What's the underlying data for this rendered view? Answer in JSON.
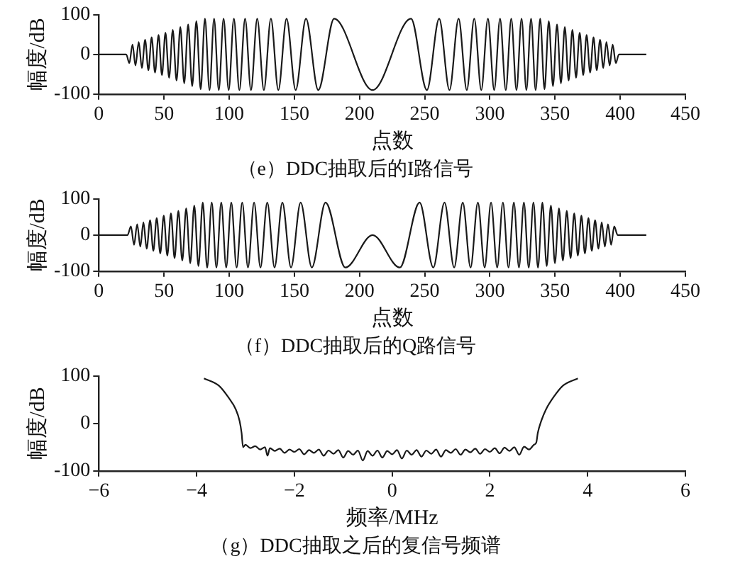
{
  "chart_data": [
    {
      "type": "line",
      "title": "（e）DDC抽取后的I路信号",
      "xlabel": "点数",
      "ylabel": "幅度/dB",
      "xlim": [
        0,
        450
      ],
      "xticks": [
        0,
        50,
        100,
        150,
        200,
        250,
        300,
        350,
        400,
        450
      ],
      "ylim": [
        -100,
        100
      ],
      "yticks": [
        -100,
        0,
        100
      ],
      "series": [
        {
          "color": "#1a1a1a",
          "x": [
            0,
            21,
            23.4,
            25.8,
            28.1,
            30.6,
            33.0,
            35.5,
            38.0,
            40.5,
            43.1,
            45.8,
            48.4,
            51.1,
            53.9,
            56.7,
            59.6,
            62.5,
            65.5,
            68.5,
            71.6,
            74.8,
            78.1,
            81.4,
            84.9,
            88.4,
            92.0,
            95.7,
            99.6,
            103.6,
            107.8,
            112.2,
            116.7,
            121.5,
            126.6,
            132.0,
            137.7,
            144.0,
            151.0,
            158.9,
            168.3,
            180.5,
            210,
            239.5,
            251.7,
            261.1,
            269.0,
            276.0,
            282.3,
            288.0,
            293.4,
            298.5,
            303.3,
            307.8,
            312.2,
            316.4,
            320.4,
            324.3,
            328.0,
            331.6,
            335.1,
            338.6,
            341.9,
            345.2,
            348.4,
            351.5,
            354.5,
            357.5,
            360.4,
            363.3,
            366.1,
            368.9,
            371.6,
            374.2,
            376.9,
            379.5,
            382.0,
            384.5,
            387.0,
            389.4,
            391.9,
            394.2,
            396.6,
            399,
            420
          ],
          "values": [
            0,
            0,
            -22,
            25,
            -28,
            31,
            -34,
            37,
            -40,
            43,
            -46,
            49,
            -52,
            55,
            -59,
            62,
            -66,
            69,
            -73,
            76,
            -80,
            84,
            -88,
            90,
            -90,
            90,
            -90,
            90,
            -90,
            90,
            -90,
            90,
            -90,
            90,
            -90,
            90,
            -90,
            90,
            -90,
            90,
            -90,
            90,
            -90,
            90,
            -90,
            90,
            -90,
            90,
            -90,
            90,
            -90,
            90,
            -90,
            90,
            -90,
            90,
            -90,
            90,
            -90,
            90,
            -90,
            90,
            -88,
            84,
            -80,
            76,
            -73,
            69,
            -66,
            62,
            -59,
            55,
            -52,
            49,
            -46,
            43,
            -40,
            37,
            -34,
            31,
            -28,
            25,
            -22,
            0,
            0
          ]
        }
      ]
    },
    {
      "type": "line",
      "title": "（f）DDC抽取后的Q路信号",
      "xlabel": "点数",
      "ylabel": "幅度/dB",
      "xlim": [
        0,
        450
      ],
      "xticks": [
        0,
        50,
        100,
        150,
        200,
        250,
        300,
        350,
        400,
        450
      ],
      "ylim": [
        -100,
        100
      ],
      "yticks": [
        -100,
        0,
        100
      ],
      "series": [
        {
          "color": "#1a1a1a",
          "x": [
            0,
            22,
            24.6,
            27.0,
            29.4,
            31.8,
            34.2,
            36.7,
            39.3,
            41.8,
            44.4,
            47.1,
            49.8,
            52.5,
            55.3,
            58.1,
            61.0,
            64.0,
            67.0,
            70.1,
            73.2,
            76.4,
            79.7,
            83.1,
            86.6,
            90.2,
            93.9,
            97.7,
            101.6,
            105.7,
            110.0,
            114.4,
            119.1,
            124.0,
            129.2,
            134.8,
            140.8,
            147.4,
            154.8,
            163.4,
            173.9,
            189.1,
            210,
            230.9,
            246.1,
            256.6,
            265.2,
            272.6,
            279.2,
            285.2,
            290.8,
            296.0,
            300.9,
            305.6,
            310.0,
            314.3,
            318.4,
            322.3,
            326.1,
            329.8,
            333.4,
            336.9,
            340.3,
            343.6,
            346.8,
            349.9,
            353.0,
            356.0,
            359.0,
            361.9,
            364.7,
            367.5,
            370.2,
            372.9,
            375.6,
            378.2,
            380.7,
            383.3,
            385.8,
            388.2,
            390.6,
            393.0,
            395.4,
            398,
            420
          ],
          "values": [
            0,
            0,
            24,
            -27,
            30,
            -32,
            35,
            -38,
            41,
            -44,
            47,
            -51,
            54,
            -57,
            60,
            -64,
            67,
            -71,
            74,
            -78,
            82,
            -86,
            90,
            -90,
            90,
            -90,
            90,
            -90,
            90,
            -90,
            90,
            -90,
            90,
            -90,
            90,
            -90,
            90,
            -90,
            90,
            -90,
            90,
            -90,
            0,
            -90,
            90,
            -90,
            90,
            -90,
            90,
            -90,
            90,
            -90,
            90,
            -90,
            90,
            -90,
            90,
            -90,
            90,
            -90,
            90,
            -90,
            90,
            -86,
            82,
            -78,
            74,
            -71,
            67,
            -64,
            60,
            -57,
            54,
            -51,
            47,
            -44,
            41,
            -38,
            35,
            -32,
            30,
            -27,
            24,
            0,
            0
          ]
        }
      ]
    },
    {
      "type": "line",
      "title": "（g）DDC抽取之后的复信号频谱",
      "xlabel": "频率/MHz",
      "ylabel": "幅度/dB",
      "xlim": [
        -6,
        6
      ],
      "xticks": [
        {
          "value": -6,
          "label": "−6"
        },
        {
          "value": -4,
          "label": "−4"
        },
        {
          "value": -2,
          "label": "−2"
        },
        0,
        2,
        4,
        6
      ],
      "ylim": [
        -100,
        100
      ],
      "yticks": [
        -100,
        0,
        100
      ],
      "series": [
        {
          "color": "#1a1a1a",
          "x": [
            -3.85,
            -3.55,
            -3.35,
            -3.2,
            -3.12,
            -3.08,
            -3.05,
            -3.0,
            -2.9,
            -2.8,
            -2.7,
            -2.6,
            -2.55,
            -2.5,
            -2.4,
            -2.3,
            -2.2,
            -2.1,
            -2.0,
            -1.9,
            -1.8,
            -1.7,
            -1.6,
            -1.5,
            -1.4,
            -1.3,
            -1.2,
            -1.1,
            -1.0,
            -0.9,
            -0.8,
            -0.7,
            -0.6,
            -0.5,
            -0.4,
            -0.3,
            -0.2,
            -0.1,
            0.0,
            0.1,
            0.2,
            0.3,
            0.4,
            0.5,
            0.6,
            0.7,
            0.8,
            0.9,
            1.0,
            1.1,
            1.2,
            1.3,
            1.4,
            1.5,
            1.6,
            1.7,
            1.8,
            1.9,
            2.0,
            2.1,
            2.2,
            2.3,
            2.4,
            2.5,
            2.6,
            2.7,
            2.8,
            2.9,
            2.95,
            2.98,
            3.05,
            3.15,
            3.3,
            3.5,
            3.8
          ],
          "values": [
            95,
            80,
            55,
            30,
            5,
            -20,
            -50,
            -45,
            -52,
            -48,
            -55,
            -50,
            -68,
            -52,
            -58,
            -53,
            -62,
            -55,
            -60,
            -54,
            -65,
            -56,
            -62,
            -55,
            -68,
            -57,
            -64,
            -56,
            -72,
            -58,
            -66,
            -57,
            -78,
            -58,
            -68,
            -57,
            -72,
            -58,
            -65,
            -56,
            -74,
            -57,
            -66,
            -56,
            -70,
            -57,
            -64,
            -55,
            -70,
            -56,
            -62,
            -54,
            -66,
            -55,
            -61,
            -53,
            -64,
            -54,
            -60,
            -52,
            -63,
            -51,
            -58,
            -50,
            -66,
            -49,
            -55,
            -45,
            -40,
            -20,
            5,
            30,
            55,
            80,
            95
          ]
        }
      ]
    }
  ]
}
